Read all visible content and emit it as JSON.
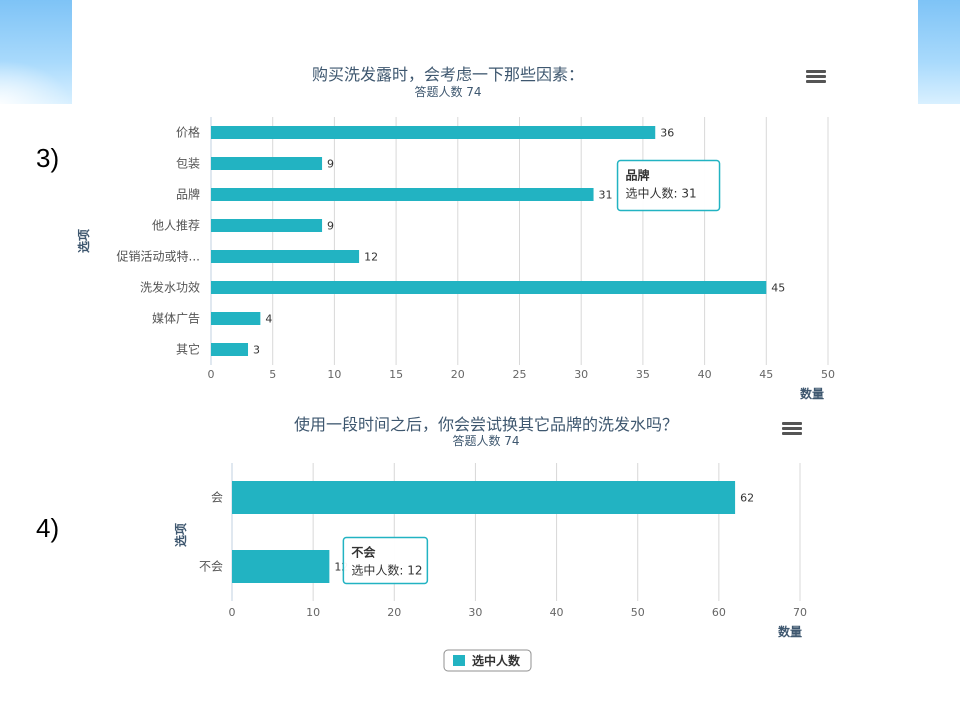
{
  "slide": {
    "label_3": "3)",
    "label_4": "4)"
  },
  "colors": {
    "bar": "#22b3c2",
    "grid": "#d8d8d8",
    "axis": "#c0d0e0",
    "deco": "#8ccbf7"
  },
  "chart_data": [
    {
      "type": "bar",
      "orientation": "horizontal",
      "title": "购买洗发露时，会考虑一下那些因素：",
      "subtitle": "答题人数 74",
      "ylabel": "选项",
      "xlabel": "数量",
      "categories": [
        "价格",
        "包装",
        "品牌",
        "他人推荐",
        "促销活动或特...",
        "洗发水功效",
        "媒体广告",
        "其它"
      ],
      "series": [
        {
          "values": [
            36,
            9,
            31,
            9,
            12,
            45,
            4,
            3
          ]
        }
      ],
      "xlim": [
        0,
        50
      ],
      "xticks": [
        0,
        5,
        10,
        15,
        20,
        25,
        30,
        35,
        40,
        45,
        50
      ],
      "grid": true,
      "menu_icon": "hamburger-menu-icon",
      "tooltip": {
        "title": "品牌",
        "text": "选中人数: 31"
      }
    },
    {
      "type": "bar",
      "orientation": "horizontal",
      "title": "使用一段时间之后，你会尝试换其它品牌的洗发水吗？",
      "subtitle": "答题人数 74",
      "ylabel": "选项",
      "xlabel": "数量",
      "categories": [
        "会",
        "不会"
      ],
      "series": [
        {
          "name": "选中人数",
          "values": [
            62,
            12
          ]
        }
      ],
      "xlim": [
        0,
        70
      ],
      "xticks": [
        0,
        10,
        20,
        30,
        40,
        50,
        60,
        70
      ],
      "grid": true,
      "legend": "bottom-center",
      "menu_icon": "hamburger-menu-icon",
      "tooltip": {
        "title": "不会",
        "text": "选中人数: 12"
      }
    }
  ]
}
